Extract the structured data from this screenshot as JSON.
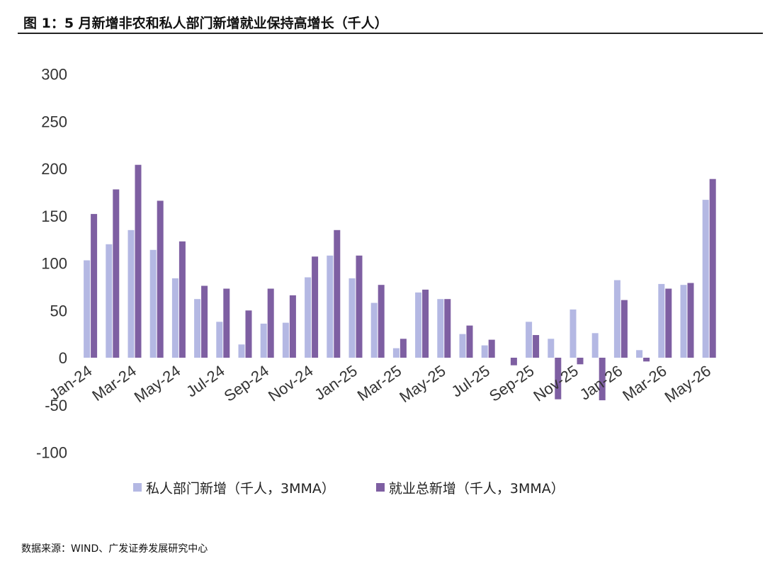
{
  "figure_title": "图 1：5 月新增非农和私人部门新增就业保持高增长（千人）",
  "source_note": "数据来源：WIND、广发证券发展研究中心",
  "colors": {
    "private": "#b4b8e3",
    "total": "#7e5fa2"
  },
  "chart_data": {
    "type": "bar",
    "title": "",
    "ylim": [
      -100,
      300
    ],
    "yticks": [
      300,
      250,
      200,
      150,
      100,
      50,
      0,
      -50,
      -100
    ],
    "tick_labels": [
      "Jan-24",
      "Mar-24",
      "May-24",
      "Jul-24",
      "Sep-24",
      "Nov-24",
      "Jan-25",
      "Mar-25",
      "May-25",
      "Jul-25",
      "Sep-25",
      "Nov-25",
      "Jan-26",
      "Mar-26",
      "May-26"
    ],
    "categories": [
      "Jan-24",
      "Feb-24",
      "Mar-24",
      "Apr-24",
      "May-24",
      "Jun-24",
      "Jul-24",
      "Aug-24",
      "Sep-24",
      "Oct-24",
      "Nov-24",
      "Dec-24",
      "Jan-25",
      "Feb-25",
      "Mar-25",
      "Apr-25",
      "May-25",
      "Jun-25",
      "Jul-25",
      "Aug-25",
      "Sep-25",
      "Oct-25",
      "Nov-25",
      "Dec-25",
      "Jan-26",
      "Feb-26",
      "Mar-26",
      "Apr-26",
      "May-26"
    ],
    "series": [
      {
        "name": "私人部门新增（千人，3MMA）",
        "values": [
          103,
          120,
          135,
          114,
          84,
          62,
          38,
          14,
          36,
          37,
          85,
          108,
          84,
          58,
          10,
          69,
          62,
          25,
          13,
          0,
          38,
          20,
          51,
          26,
          82,
          8,
          78,
          77,
          167
        ]
      },
      {
        "name": "就业总新增（千人，3MMA）",
        "values": [
          152,
          178,
          204,
          166,
          123,
          76,
          73,
          50,
          73,
          66,
          107,
          135,
          108,
          77,
          20,
          72,
          62,
          34,
          19,
          -8,
          24,
          -44,
          -7,
          -45,
          61,
          -4,
          73,
          79,
          189
        ]
      }
    ],
    "legend_position": "bottom",
    "grid": false
  }
}
